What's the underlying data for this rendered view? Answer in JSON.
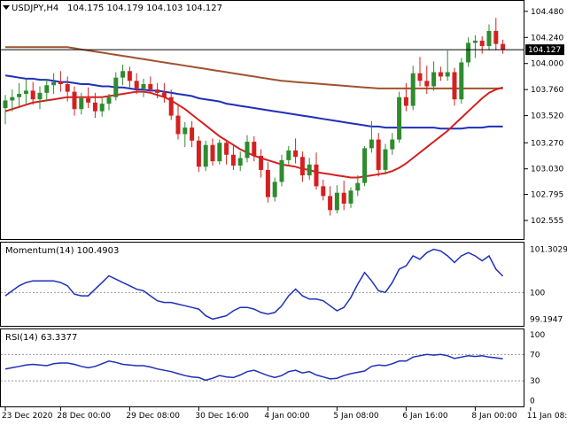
{
  "header": {
    "symbol": "USDJPY,H4",
    "ohlc": "104.175 104.179 104.103 104.127"
  },
  "chart_data": {
    "type": "candlestick",
    "panes": [
      {
        "id": "price",
        "ylim": [
          102.4,
          104.56
        ],
        "yticks": [
          "104.480",
          "104.240",
          "104.000",
          "103.760",
          "103.520",
          "103.270",
          "103.030",
          "102.795",
          "102.555"
        ],
        "current_price_label": "104.127",
        "current_price": 104.127,
        "candle_colors": {
          "up": "#2e8b2e",
          "down": "#d42020"
        },
        "candles": [
          [
            103.59,
            103.71,
            103.44,
            103.66
          ],
          [
            103.66,
            103.76,
            103.56,
            103.69
          ],
          [
            103.69,
            103.82,
            103.6,
            103.72
          ],
          [
            103.72,
            103.86,
            103.63,
            103.75
          ],
          [
            103.75,
            103.83,
            103.62,
            103.67
          ],
          [
            103.67,
            103.79,
            103.58,
            103.73
          ],
          [
            103.73,
            103.86,
            103.65,
            103.8
          ],
          [
            103.8,
            103.91,
            103.72,
            103.83
          ],
          [
            103.83,
            103.93,
            103.74,
            103.81
          ],
          [
            103.81,
            103.88,
            103.65,
            103.74
          ],
          [
            103.74,
            103.79,
            103.52,
            103.58
          ],
          [
            103.58,
            103.73,
            103.53,
            103.68
          ],
          [
            103.68,
            103.78,
            103.59,
            103.64
          ],
          [
            103.64,
            103.73,
            103.5,
            103.56
          ],
          [
            103.56,
            103.68,
            103.51,
            103.63
          ],
          [
            103.63,
            103.72,
            103.57,
            103.69
          ],
          [
            103.69,
            103.92,
            103.66,
            103.87
          ],
          [
            103.87,
            103.99,
            103.8,
            103.93
          ],
          [
            103.93,
            103.97,
            103.78,
            103.84
          ],
          [
            103.84,
            103.91,
            103.72,
            103.77
          ],
          [
            103.77,
            103.86,
            103.69,
            103.81
          ],
          [
            103.81,
            103.88,
            103.74,
            103.76
          ],
          [
            103.76,
            103.82,
            103.68,
            103.73
          ],
          [
            103.73,
            103.82,
            103.64,
            103.69
          ],
          [
            103.69,
            103.76,
            103.48,
            103.52
          ],
          [
            103.52,
            103.61,
            103.3,
            103.35
          ],
          [
            103.35,
            103.46,
            103.23,
            103.41
          ],
          [
            103.41,
            103.47,
            103.23,
            103.29
          ],
          [
            103.29,
            103.33,
            103.0,
            103.05
          ],
          [
            103.05,
            103.29,
            103.01,
            103.25
          ],
          [
            103.25,
            103.31,
            103.06,
            103.1
          ],
          [
            103.1,
            103.3,
            103.07,
            103.27
          ],
          [
            103.27,
            103.3,
            103.07,
            103.16
          ],
          [
            103.16,
            103.26,
            103.02,
            103.06
          ],
          [
            103.06,
            103.19,
            103.01,
            103.13
          ],
          [
            103.13,
            103.34,
            103.09,
            103.28
          ],
          [
            103.28,
            103.33,
            103.1,
            103.15
          ],
          [
            103.15,
            103.21,
            102.95,
            103.02
          ],
          [
            103.02,
            103.09,
            102.72,
            102.77
          ],
          [
            102.77,
            102.95,
            102.73,
            102.91
          ],
          [
            102.91,
            103.16,
            102.87,
            103.11
          ],
          [
            103.11,
            103.24,
            103.07,
            103.2
          ],
          [
            103.2,
            103.31,
            103.08,
            103.14
          ],
          [
            103.14,
            103.19,
            102.91,
            102.97
          ],
          [
            102.97,
            103.13,
            102.93,
            103.07
          ],
          [
            103.07,
            103.18,
            102.84,
            102.87
          ],
          [
            102.87,
            102.93,
            102.74,
            102.78
          ],
          [
            102.78,
            102.87,
            102.6,
            102.65
          ],
          [
            102.65,
            102.88,
            102.62,
            102.81
          ],
          [
            102.81,
            102.92,
            102.65,
            102.71
          ],
          [
            102.71,
            102.86,
            102.67,
            102.83
          ],
          [
            102.83,
            102.97,
            102.78,
            102.9
          ],
          [
            102.9,
            103.24,
            102.87,
            103.22
          ],
          [
            103.22,
            103.47,
            103.18,
            103.3
          ],
          [
            103.3,
            103.36,
            102.96,
            103.02
          ],
          [
            103.02,
            103.26,
            102.98,
            103.21
          ],
          [
            103.21,
            103.36,
            103.16,
            103.3
          ],
          [
            103.3,
            103.74,
            103.27,
            103.69
          ],
          [
            103.69,
            103.82,
            103.56,
            103.61
          ],
          [
            103.61,
            103.98,
            103.57,
            103.91
          ],
          [
            103.91,
            104.06,
            103.79,
            103.84
          ],
          [
            103.84,
            103.98,
            103.72,
            103.79
          ],
          [
            103.79,
            104.02,
            103.75,
            103.92
          ],
          [
            103.92,
            103.97,
            103.84,
            103.88
          ],
          [
            103.88,
            104.12,
            103.84,
            103.92
          ],
          [
            103.92,
            103.96,
            103.61,
            103.67
          ],
          [
            103.67,
            104.05,
            103.63,
            104.01
          ],
          [
            104.01,
            104.24,
            103.97,
            104.19
          ],
          [
            104.19,
            104.26,
            104.05,
            104.21
          ],
          [
            104.21,
            104.25,
            104.09,
            104.16
          ],
          [
            104.16,
            104.36,
            104.12,
            104.3
          ],
          [
            104.3,
            104.42,
            104.12,
            104.18
          ],
          [
            104.18,
            104.22,
            104.09,
            104.127
          ]
        ],
        "moving_averages": [
          {
            "color": "#a0522d",
            "values": [
              104.15,
              104.15,
              104.15,
              104.15,
              104.15,
              104.15,
              104.15,
              104.15,
              104.15,
              104.15,
              104.14,
              104.13,
              104.12,
              104.11,
              104.1,
              104.09,
              104.08,
              104.07,
              104.06,
              104.05,
              104.04,
              104.03,
              104.02,
              104.01,
              104.0,
              103.99,
              103.98,
              103.97,
              103.96,
              103.95,
              103.94,
              103.93,
              103.92,
              103.91,
              103.9,
              103.89,
              103.88,
              103.87,
              103.86,
              103.85,
              103.84,
              103.835,
              103.83,
              103.825,
              103.82,
              103.815,
              103.81,
              103.805,
              103.8,
              103.795,
              103.79,
              103.785,
              103.78,
              103.775,
              103.77,
              103.77,
              103.77,
              103.77,
              103.77,
              103.77,
              103.77,
              103.77,
              103.77,
              103.77,
              103.77,
              103.77,
              103.77,
              103.77,
              103.77,
              103.77,
              103.77,
              103.77,
              103.77
            ]
          },
          {
            "color": "#1f2fb8",
            "values": [
              103.89,
              103.88,
              103.87,
              103.86,
              103.86,
              103.85,
              103.85,
              103.84,
              103.83,
              103.83,
              103.82,
              103.81,
              103.81,
              103.8,
              103.79,
              103.79,
              103.78,
              103.78,
              103.77,
              103.76,
              103.76,
              103.75,
              103.75,
              103.74,
              103.73,
              103.72,
              103.71,
              103.7,
              103.68,
              103.67,
              103.66,
              103.65,
              103.63,
              103.62,
              103.61,
              103.6,
              103.59,
              103.58,
              103.57,
              103.56,
              103.55,
              103.54,
              103.53,
              103.52,
              103.51,
              103.5,
              103.49,
              103.48,
              103.47,
              103.46,
              103.45,
              103.44,
              103.43,
              103.42,
              103.42,
              103.41,
              103.41,
              103.41,
              103.41,
              103.41,
              103.41,
              103.41,
              103.41,
              103.4,
              103.4,
              103.4,
              103.4,
              103.41,
              103.41,
              103.41,
              103.42,
              103.42,
              103.42
            ]
          },
          {
            "color": "#d42020",
            "values": [
              103.56,
              103.58,
              103.6,
              103.62,
              103.64,
              103.65,
              103.66,
              103.67,
              103.68,
              103.69,
              103.69,
              103.69,
              103.69,
              103.69,
              103.69,
              103.7,
              103.71,
              103.72,
              103.73,
              103.74,
              103.74,
              103.73,
              103.71,
              103.69,
              103.66,
              103.62,
              103.58,
              103.53,
              103.48,
              103.43,
              103.38,
              103.33,
              103.29,
              103.25,
              103.21,
              103.18,
              103.15,
              103.13,
              103.11,
              103.09,
              103.07,
              103.06,
              103.05,
              103.03,
              103.02,
              103.0,
              102.99,
              102.98,
              102.97,
              102.96,
              102.95,
              102.95,
              102.96,
              102.97,
              102.98,
              102.99,
              103.01,
              103.04,
              103.08,
              103.13,
              103.18,
              103.23,
              103.28,
              103.33,
              103.38,
              103.44,
              103.5,
              103.56,
              103.62,
              103.68,
              103.73,
              103.76,
              103.78
            ]
          }
        ]
      },
      {
        "id": "momentum",
        "label": "Momentum(14) 100.4903",
        "ylim": [
          99.05,
          101.42
        ],
        "yticks": [
          "101.3029",
          "100",
          "99.1947"
        ],
        "tick_values": [
          101.3029,
          100.0,
          99.1947
        ],
        "dotted_levels": [
          100.0
        ],
        "color": "#1f2fb8",
        "values": [
          99.9,
          100.05,
          100.2,
          100.3,
          100.35,
          100.35,
          100.35,
          100.35,
          100.3,
          100.2,
          99.95,
          99.9,
          99.9,
          100.1,
          100.3,
          100.5,
          100.4,
          100.3,
          100.2,
          100.1,
          100.05,
          99.9,
          99.75,
          99.7,
          99.7,
          99.65,
          99.6,
          99.55,
          99.5,
          99.3,
          99.2,
          99.25,
          99.3,
          99.45,
          99.55,
          99.55,
          99.5,
          99.4,
          99.35,
          99.4,
          99.6,
          99.9,
          100.1,
          99.9,
          99.8,
          99.8,
          99.75,
          99.6,
          99.45,
          99.55,
          99.85,
          100.25,
          100.6,
          100.35,
          100.05,
          100.0,
          100.3,
          100.7,
          100.8,
          101.1,
          101.0,
          101.2,
          101.3,
          101.25,
          101.1,
          100.9,
          101.1,
          101.2,
          101.1,
          100.95,
          101.1,
          100.7,
          100.49
        ]
      },
      {
        "id": "rsi",
        "label": "RSI(14) 63.3377",
        "ylim": [
          -6,
          104
        ],
        "yticks": [
          "100",
          "70",
          "30",
          "0"
        ],
        "tick_values": [
          100,
          70,
          30,
          0
        ],
        "dotted_levels": [
          70,
          30
        ],
        "color": "#1f2fb8",
        "values": [
          48,
          50,
          52,
          54,
          55,
          54,
          53,
          56,
          57,
          57,
          55,
          52,
          50,
          52,
          56,
          60,
          58,
          55,
          54,
          53,
          53,
          51,
          48,
          46,
          44,
          41,
          38,
          36,
          35,
          31,
          34,
          38,
          36,
          35,
          39,
          44,
          46,
          42,
          38,
          35,
          38,
          44,
          46,
          42,
          44,
          39,
          36,
          33,
          34,
          38,
          41,
          43,
          45,
          52,
          54,
          53,
          56,
          60,
          60,
          66,
          68,
          70,
          69,
          70,
          68,
          64,
          66,
          68,
          67,
          68,
          66,
          65,
          63.34
        ]
      }
    ],
    "x_tick_labels": [
      "23 Dec 2020",
      "28 Dec 00:00",
      "29 Dec 08:00",
      "30 Dec 16:00",
      "4 Jan 00:00",
      "5 Jan 08:00",
      "6 Jan 16:00",
      "8 Jan 00:00",
      "11 Jan 08:00"
    ],
    "x_tick_positions": [
      0,
      8,
      18,
      28,
      38,
      48,
      58,
      68,
      76
    ]
  }
}
